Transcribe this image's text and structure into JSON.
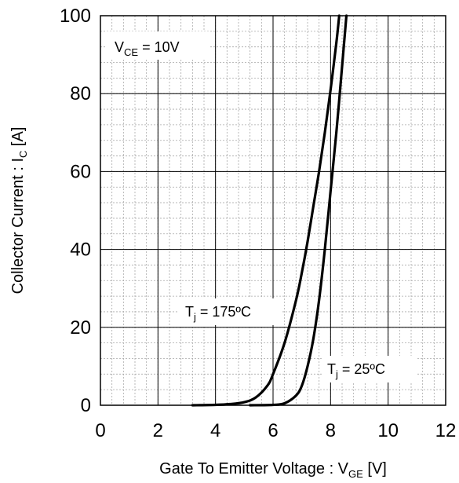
{
  "chart_data": {
    "type": "line",
    "xlabel": {
      "main": "Gate To Emitter Voltage : V",
      "sub": "GE",
      "unit": " [V]"
    },
    "ylabel": {
      "main": "Collector Current : I",
      "sub": "C",
      "unit": " [A]"
    },
    "xlim": [
      0,
      12
    ],
    "ylim": [
      0,
      100
    ],
    "x_ticks": [
      0,
      2,
      4,
      6,
      8,
      10,
      12
    ],
    "y_ticks": [
      0,
      20,
      40,
      60,
      80,
      100
    ],
    "grid": true,
    "minor_grid": {
      "x_step": 0.4,
      "y_step": 4
    },
    "condition": {
      "main": "V",
      "sub": "CE",
      "rest": " = 10V"
    },
    "series": [
      {
        "name": "Tj = 175ºC",
        "label": {
          "main": "T",
          "sub": "j",
          "rest": " = 175ºC"
        },
        "x": [
          3.2,
          4.0,
          4.5,
          5.0,
          5.4,
          5.8,
          6.0,
          6.4,
          6.8,
          7.0,
          7.2,
          7.4,
          7.6,
          7.8,
          8.0,
          8.2,
          8.3
        ],
        "y": [
          0,
          0.1,
          0.3,
          0.8,
          2.0,
          5.0,
          8.0,
          16.0,
          27.0,
          34.0,
          42.0,
          51.0,
          60.0,
          70.0,
          81.0,
          93.0,
          100
        ]
      },
      {
        "name": "Tj = 25ºC",
        "label": {
          "main": "T",
          "sub": "j",
          "rest": " = 25ºC"
        },
        "x": [
          5.2,
          6.0,
          6.4,
          6.8,
          7.0,
          7.2,
          7.4,
          7.6,
          7.8,
          8.0,
          8.2,
          8.4,
          8.55
        ],
        "y": [
          0,
          0.1,
          0.5,
          2.5,
          5.0,
          10.0,
          17.0,
          27.0,
          40.0,
          55.0,
          70.0,
          87.0,
          100
        ]
      }
    ]
  }
}
